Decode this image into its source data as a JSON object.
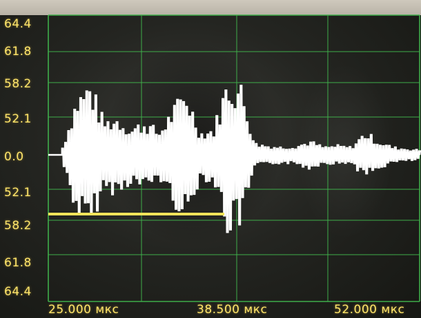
{
  "y_labels": [
    "64.4",
    "61.8",
    "58.2",
    "52.1",
    "0.0",
    "52.1",
    "58.2",
    "61.8",
    "64.4"
  ],
  "x_labels": [
    "25.000 мкс",
    "38.500 мкс",
    "52.000 мкс"
  ],
  "colors": {
    "grid": "#3fae4a",
    "trace": "#ffffff",
    "marker": "#f2e45a",
    "label": "#ffe56a"
  },
  "chart_data": {
    "type": "line",
    "x": [
      25.0,
      26.0,
      27.0,
      28.0,
      29.0,
      30.0,
      31.0,
      32.0,
      33.0,
      34.0,
      35.0,
      36.0,
      37.0,
      38.0,
      39.0,
      40.0,
      41.0,
      42.0,
      43.0,
      44.0,
      45.0,
      46.0,
      47.0,
      48.0,
      49.0,
      50.0,
      51.0,
      52.0
    ],
    "amplitude_envelope": [
      0.0,
      0.1,
      0.75,
      0.95,
      0.45,
      0.5,
      0.35,
      0.45,
      0.3,
      0.6,
      0.85,
      0.3,
      0.35,
      1.0,
      0.9,
      0.15,
      0.12,
      0.1,
      0.12,
      0.18,
      0.1,
      0.12,
      0.1,
      0.3,
      0.18,
      0.1,
      0.08,
      0.06
    ],
    "x_ticks": [
      "25.000 мкс",
      "38.500 мкс",
      "52.000 мкс"
    ],
    "y_ticks": [
      "64.4",
      "61.8",
      "58.2",
      "52.1",
      "0.0",
      "52.1",
      "58.2",
      "61.8",
      "64.4"
    ],
    "threshold_marker": {
      "x_start": 25.0,
      "x_end": 37.8,
      "level_label": "58.2"
    },
    "grid": true
  }
}
